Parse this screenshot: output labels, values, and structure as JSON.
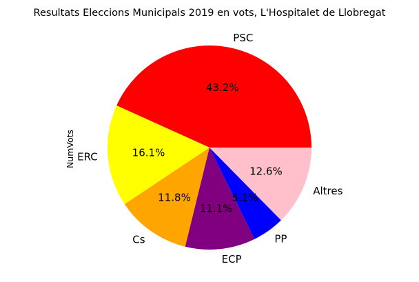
{
  "chart_data": {
    "type": "pie",
    "title": "Resultats Eleccions Municipals 2019 en vots, L'Hospitalet de Llobregat",
    "ylabel": "NumVots",
    "slices": [
      {
        "label": "PSC",
        "percent": 43.2,
        "pct_label": "43.2%",
        "color": "#ff0000"
      },
      {
        "label": "ERC",
        "percent": 16.1,
        "pct_label": "16.1%",
        "color": "#ffff00"
      },
      {
        "label": "Cs",
        "percent": 11.8,
        "pct_label": "11.8%",
        "color": "#ffa500"
      },
      {
        "label": "ECP",
        "percent": 11.1,
        "pct_label": "11.1%",
        "color": "#800080"
      },
      {
        "label": "PP",
        "percent": 5.1,
        "pct_label": "5.1%",
        "color": "#0000ff"
      },
      {
        "label": "Altres",
        "percent": 12.6,
        "pct_label": "12.6%",
        "color": "#ffc0cb"
      }
    ],
    "start_angle_deg": 0,
    "direction": "counterclockwise",
    "legend": "none"
  }
}
